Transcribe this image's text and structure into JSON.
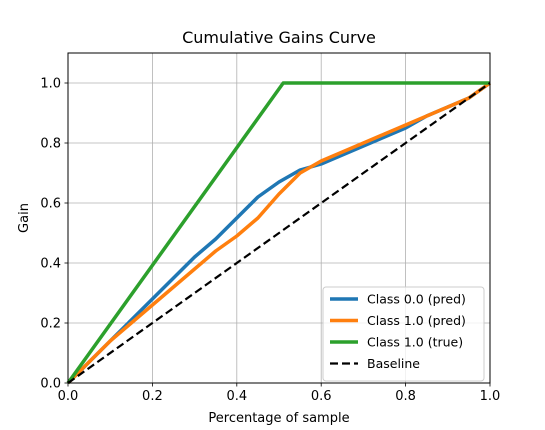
{
  "chart_data": {
    "type": "line",
    "title": "Cumulative Gains Curve",
    "xlabel": "Percentage of sample",
    "ylabel": "Gain",
    "xlim": [
      0.0,
      1.0
    ],
    "ylim": [
      0.0,
      1.1
    ],
    "xticks": [
      "0.0",
      "0.2",
      "0.4",
      "0.6",
      "0.8",
      "1.0"
    ],
    "yticks": [
      "0.0",
      "0.2",
      "0.4",
      "0.6",
      "0.8",
      "1.0"
    ],
    "grid": true,
    "legend_position": "lower-right",
    "series": [
      {
        "name": "Class 0.0 (pred)",
        "color": "#1f77b4",
        "style": "solid",
        "x": [
          0.0,
          0.05,
          0.1,
          0.15,
          0.2,
          0.25,
          0.3,
          0.35,
          0.4,
          0.45,
          0.5,
          0.55,
          0.6,
          0.65,
          0.7,
          0.75,
          0.8,
          0.85,
          0.9,
          0.95,
          1.0
        ],
        "y": [
          0.0,
          0.07,
          0.14,
          0.21,
          0.28,
          0.35,
          0.42,
          0.48,
          0.55,
          0.62,
          0.67,
          0.71,
          0.73,
          0.76,
          0.79,
          0.82,
          0.85,
          0.89,
          0.92,
          0.95,
          1.0
        ]
      },
      {
        "name": "Class 1.0 (pred)",
        "color": "#ff7f0e",
        "style": "solid",
        "x": [
          0.0,
          0.05,
          0.1,
          0.15,
          0.2,
          0.25,
          0.3,
          0.35,
          0.4,
          0.45,
          0.5,
          0.55,
          0.6,
          0.65,
          0.7,
          0.75,
          0.8,
          0.85,
          0.9,
          0.95,
          1.0
        ],
        "y": [
          0.0,
          0.07,
          0.14,
          0.2,
          0.26,
          0.32,
          0.38,
          0.44,
          0.49,
          0.55,
          0.63,
          0.7,
          0.74,
          0.77,
          0.8,
          0.83,
          0.86,
          0.89,
          0.92,
          0.95,
          1.0
        ]
      },
      {
        "name": "Class 1.0 (true)",
        "color": "#2ca02c",
        "style": "solid",
        "x": [
          0.0,
          0.51,
          1.0
        ],
        "y": [
          0.0,
          1.0,
          1.0
        ]
      },
      {
        "name": "Baseline",
        "color": "#000000",
        "style": "dashed",
        "x": [
          0.0,
          1.0
        ],
        "y": [
          0.0,
          1.0
        ]
      }
    ]
  }
}
